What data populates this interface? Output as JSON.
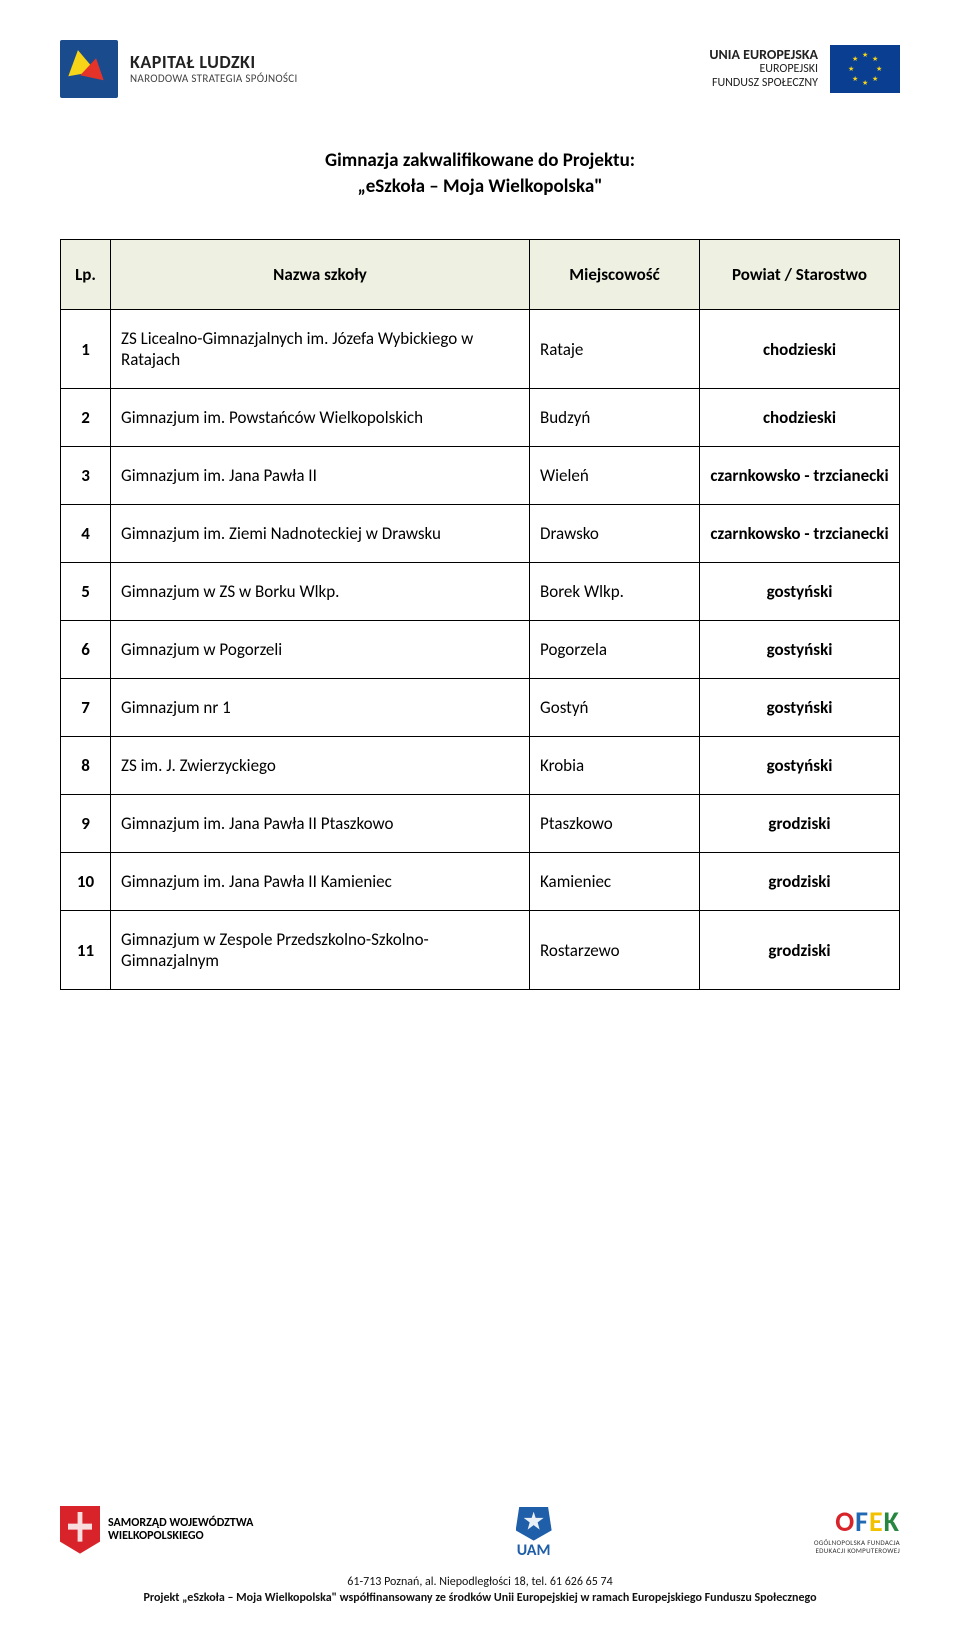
{
  "header": {
    "kl_title": "KAPITAŁ LUDZKI",
    "kl_sub": "NARODOWA STRATEGIA SPÓJNOŚCI",
    "eu_l1": "UNIA EUROPEJSKA",
    "eu_l2": "EUROPEJSKI",
    "eu_l3": "FUNDUSZ SPOŁECZNY"
  },
  "title_line1": "Gimnazja zakwalifikowane do Projektu:",
  "title_line2": "„eSzkoła – Moja Wielkopolska\"",
  "columns": {
    "lp": "Lp.",
    "name": "Nazwa szkoły",
    "city": "Miejscowość",
    "pow": "Powiat / Starostwo"
  },
  "rows": [
    {
      "lp": "1",
      "name": "ZS Licealno-Gimnazjalnych im. Józefa Wybickiego w Ratajach",
      "city": "Rataje",
      "pow": "chodzieski"
    },
    {
      "lp": "2",
      "name": "Gimnazjum im. Powstańców Wielkopolskich",
      "city": "Budzyń",
      "pow": "chodzieski"
    },
    {
      "lp": "3",
      "name": "Gimnazjum im. Jana Pawła II",
      "city": "Wieleń",
      "pow": "czarnkowsko - trzcianecki"
    },
    {
      "lp": "4",
      "name": "Gimnazjum im. Ziemi Nadnoteckiej w Drawsku",
      "city": "Drawsko",
      "pow": "czarnkowsko - trzcianecki"
    },
    {
      "lp": "5",
      "name": "Gimnazjum w ZS w Borku Wlkp.",
      "city": "Borek Wlkp.",
      "pow": "gostyński"
    },
    {
      "lp": "6",
      "name": "Gimnazjum w Pogorzeli",
      "city": "Pogorzela",
      "pow": "gostyński"
    },
    {
      "lp": "7",
      "name": "Gimnazjum nr 1",
      "city": "Gostyń",
      "pow": "gostyński"
    },
    {
      "lp": "8",
      "name": "ZS im. J. Zwierzyckiego",
      "city": "Krobia",
      "pow": "gostyński"
    },
    {
      "lp": "9",
      "name": "Gimnazjum im. Jana Pawła II Ptaszkowo",
      "city": "Ptaszkowo",
      "pow": "grodziski"
    },
    {
      "lp": "10",
      "name": "Gimnazjum im. Jana Pawła II Kamieniec",
      "city": "Kamieniec",
      "pow": "grodziski"
    },
    {
      "lp": "11",
      "name": "Gimnazjum w Zespole Przedszkolno-Szkolno-Gimnazjalnym",
      "city": "Rostarzewo",
      "pow": "grodziski"
    }
  ],
  "footer": {
    "sww_l1": "SAMORZĄD WOJEWÓDZTWA",
    "sww_l2": "WIELKOPOLSKIEGO",
    "uam_label": "UAM",
    "ofek_sub1": "OGÓLNOPOLSKA FUNDACJA",
    "ofek_sub2": "EDUKACJI KOMPUTEROWEJ",
    "line1": "61-713 Poznań, al. Niepodległości 18, tel. 61 626 65 74",
    "line2": "Projekt „eSzkoła – Moja Wielkopolska\" współfinansowany ze środków Unii Europejskiej w ramach Europejskiego Funduszu Społecznego"
  },
  "style": {
    "th_bg": "#eef0e2",
    "border_color": "#000000",
    "body_bg": "#ffffff",
    "title_fontsize": 19,
    "cell_fontsize": 17
  }
}
